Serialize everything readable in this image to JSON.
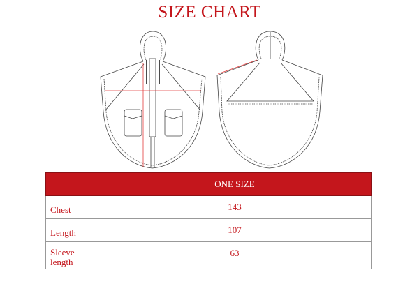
{
  "title": "SIZE CHART",
  "colors": {
    "accent": "#c4161c",
    "header_text": "#ffffff"
  },
  "images": [
    "front-garment-drawing",
    "back-garment-drawing"
  ],
  "table": {
    "header": [
      "",
      "ONE SIZE"
    ],
    "rows": [
      {
        "label": "Chest",
        "value": "143"
      },
      {
        "label": "Length",
        "value": "107"
      },
      {
        "label_line1": "Sleeve",
        "label_line2": "length",
        "value": "63"
      }
    ]
  }
}
